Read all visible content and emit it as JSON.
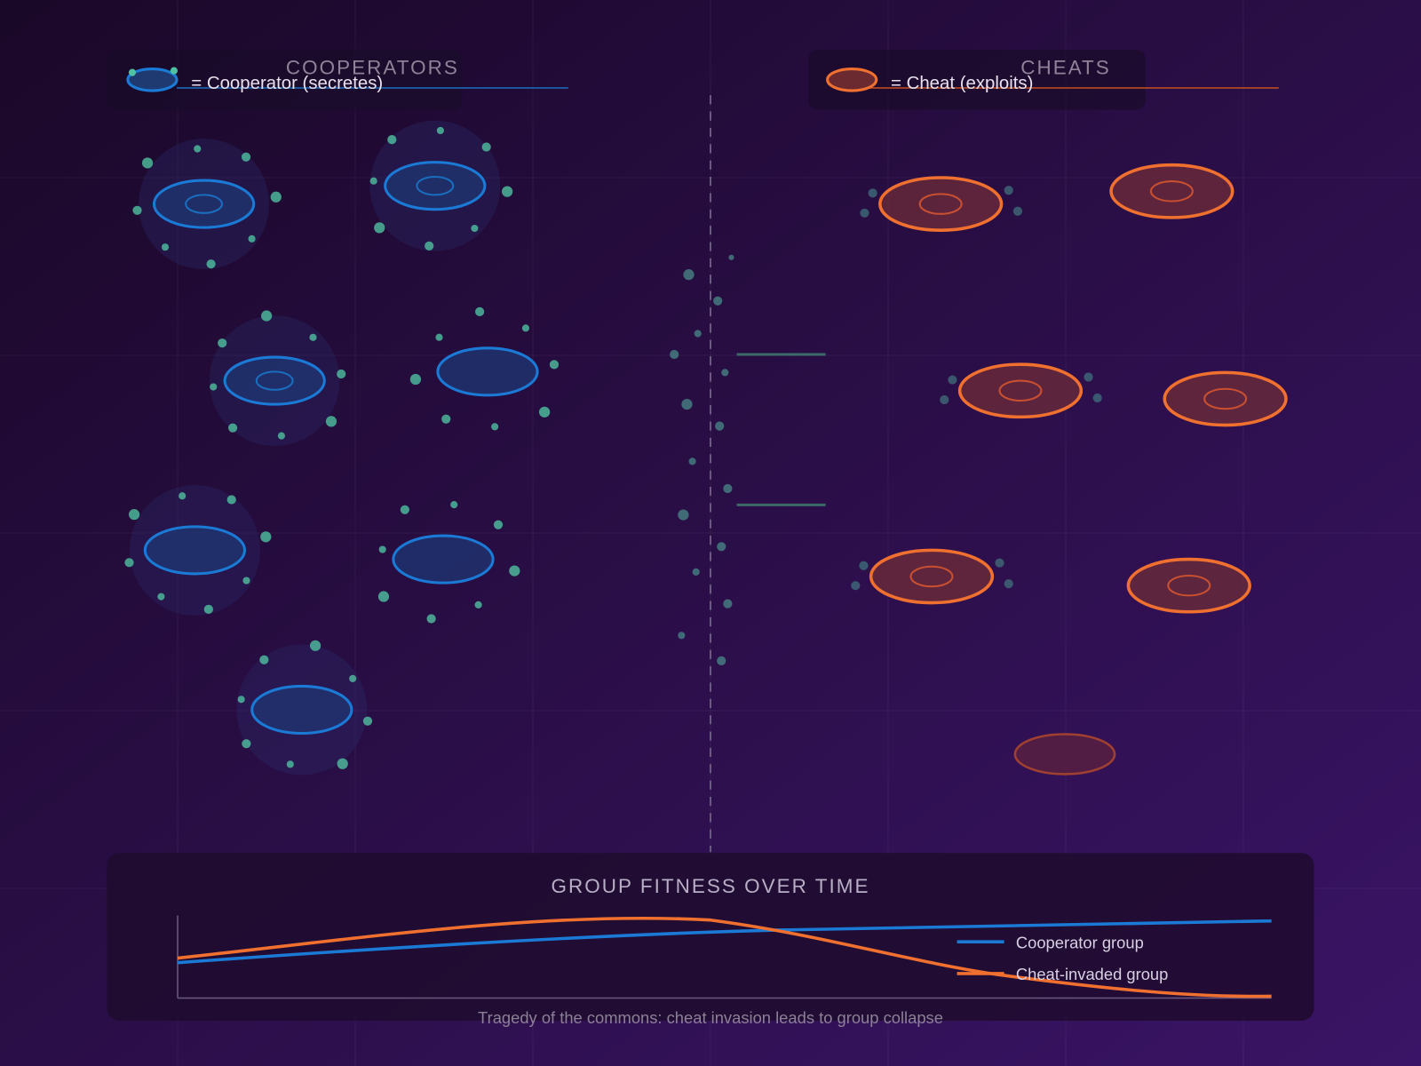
{
  "left_panel": {
    "title": "COOPERATORS",
    "legend": "= Cooperator (secretes)"
  },
  "right_panel": {
    "title": "CHEATS",
    "legend": "= Cheat (exploits)"
  },
  "fitness_panel": {
    "title": "GROUP FITNESS OVER TIME",
    "legend": [
      "Cooperator group",
      "Cheat-invaded group"
    ],
    "caption": "Tragedy of the commons: cheat invasion leads to group collapse"
  }
}
